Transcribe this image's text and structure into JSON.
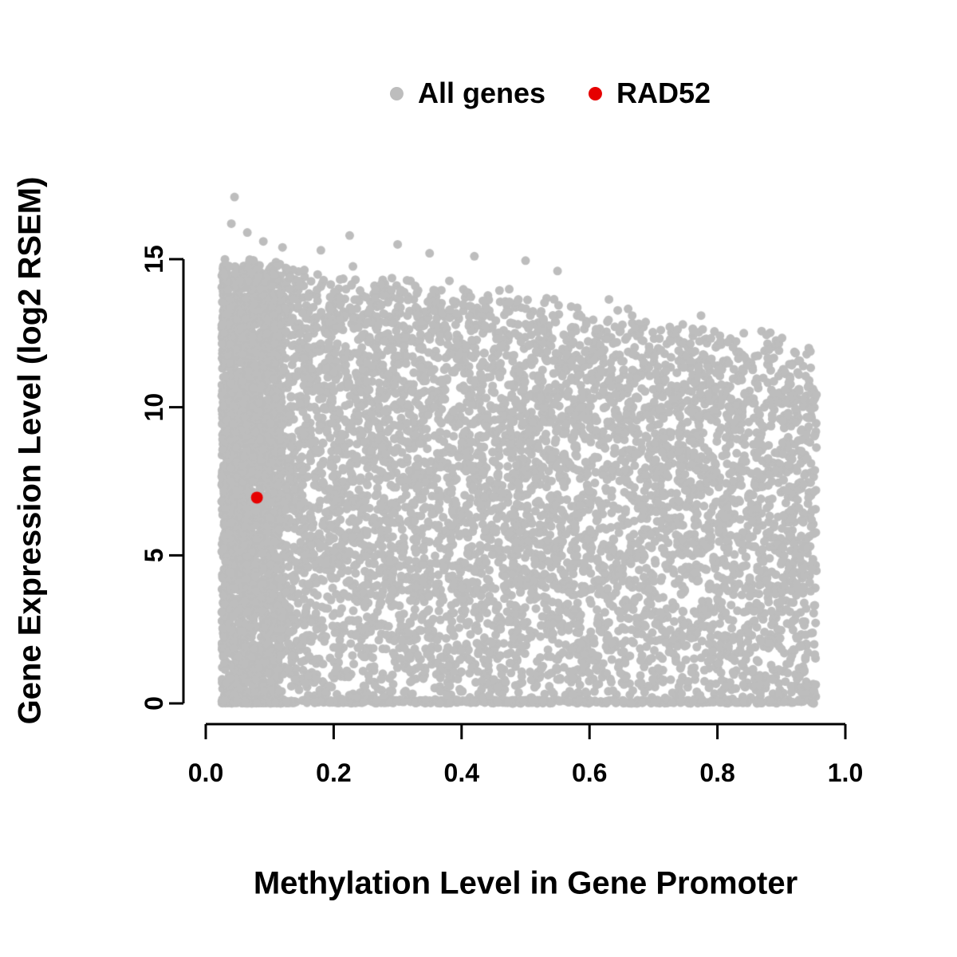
{
  "page": {
    "background": "#ffffff"
  },
  "legend": {
    "position": "top-center",
    "items": [
      {
        "label": "All genes",
        "color": "#bdbdbd"
      },
      {
        "label": "RAD52",
        "color": "#e60000"
      }
    ]
  },
  "axes": {
    "x": {
      "label": "Methylation Level in Gene Promoter",
      "ticks": [
        "0.0",
        "0.2",
        "0.4",
        "0.6",
        "0.8",
        "1.0"
      ],
      "tick_values": [
        0.0,
        0.2,
        0.4,
        0.6,
        0.8,
        1.0
      ],
      "range": [
        0.0,
        1.0
      ]
    },
    "y": {
      "label": "Gene Expression Level (log2 RSEM)",
      "ticks": [
        "0",
        "5",
        "10",
        "15"
      ],
      "tick_values": [
        0,
        5,
        10,
        15
      ],
      "range": [
        0,
        15
      ]
    }
  },
  "chart_data": {
    "type": "scatter",
    "title": "",
    "xlabel": "Methylation Level in Gene Promoter",
    "ylabel": "Gene Expression Level (log2 RSEM)",
    "xlim": [
      0.0,
      1.0
    ],
    "ylim": [
      0,
      15
    ],
    "x_ticks": [
      0.0,
      0.2,
      0.4,
      0.6,
      0.8,
      1.0
    ],
    "y_ticks": [
      0,
      5,
      10,
      15
    ],
    "grid": false,
    "legend_position": "top",
    "series": [
      {
        "name": "All genes",
        "color": "#bdbdbd",
        "kind": "dense-cloud",
        "description": "Dense gray cloud; x from ~0.03 to ~0.95, y from 0 up to an upper envelope that declines from ~15 at x=0 to ~12 at x=0.95; maximum outlier y ~17.1 near x=0.05",
        "generation": {
          "seed": 20240612,
          "n_points": 9000,
          "x_min": 0.025,
          "x_max": 0.955,
          "x_pow": 1.25,
          "left_band_frac": 0.18,
          "left_band_width": 0.095,
          "env_intercept": 15.0,
          "env_slope": -3.3,
          "env_jitter": 0.8,
          "env_cap": 15.05,
          "bottom_frac": 0.07,
          "bottom_height": 0.12,
          "y_pow": 0.9,
          "point_radius": 5.5,
          "outliers": [
            [
              0.045,
              17.1
            ],
            [
              0.04,
              16.2
            ],
            [
              0.065,
              15.9
            ],
            [
              0.09,
              15.6
            ],
            [
              0.12,
              15.4
            ],
            [
              0.225,
              15.8
            ],
            [
              0.18,
              15.3
            ],
            [
              0.3,
              15.5
            ],
            [
              0.35,
              15.2
            ],
            [
              0.42,
              15.1
            ],
            [
              0.5,
              14.95
            ],
            [
              0.55,
              14.6
            ]
          ]
        }
      },
      {
        "name": "RAD52",
        "color": "#e60000",
        "kind": "highlight-point",
        "points": [
          [
            0.08,
            6.95
          ]
        ],
        "point_radius": 7.5
      }
    ]
  }
}
